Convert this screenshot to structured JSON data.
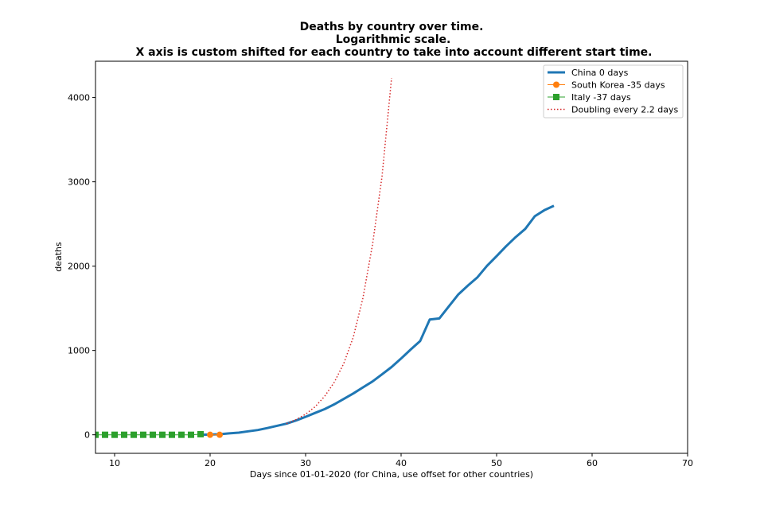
{
  "chart_data": {
    "type": "line",
    "title_lines": [
      "Deaths by country over time.",
      "Logarithmic scale.",
      "X axis is custom shifted for each country to take into account different start time."
    ],
    "xlabel": "Days since 01-01-2020 (for China, use offset for other countries)",
    "ylabel": "deaths",
    "xlim": [
      8,
      70
    ],
    "ylim": [
      -220,
      4430
    ],
    "xticks": [
      10,
      20,
      30,
      40,
      50,
      60,
      70
    ],
    "yticks": [
      0,
      1000,
      2000,
      3000,
      4000
    ],
    "grid": false,
    "legend_position": "top-right",
    "series": [
      {
        "name": "China 0 days",
        "color": "#1f77b4",
        "style": "line",
        "x": [
          19,
          20,
          21,
          22,
          23,
          24,
          25,
          26,
          27,
          28,
          29,
          30,
          31,
          32,
          33,
          34,
          35,
          36,
          37,
          38,
          39,
          40,
          41,
          42,
          43,
          44,
          45,
          46,
          47,
          48,
          49,
          50,
          51,
          52,
          53,
          54,
          55,
          56
        ],
        "y": [
          0,
          3,
          6,
          17,
          25,
          41,
          56,
          80,
          106,
          132,
          170,
          213,
          259,
          304,
          361,
          425,
          490,
          562,
          632,
          717,
          803,
          904,
          1011,
          1113,
          1367,
          1380,
          1523,
          1665,
          1770,
          1868,
          2004,
          2118,
          2236,
          2345,
          2442,
          2592,
          2663,
          2715
        ]
      },
      {
        "name": "South Korea -35 days",
        "color": "#ff7f0e",
        "style": "circle",
        "x": [
          20,
          21
        ],
        "y": [
          0,
          0
        ]
      },
      {
        "name": "Italy -37 days",
        "color": "#2ca02c",
        "style": "square",
        "x": [
          8,
          9,
          10,
          11,
          12,
          13,
          14,
          15,
          16,
          17,
          18,
          19
        ],
        "y": [
          0,
          0,
          0,
          0,
          0,
          0,
          0,
          0,
          0,
          0,
          0,
          7
        ]
      },
      {
        "name": "Doubling every 2.2 days",
        "color": "#d62728",
        "style": "dotted",
        "x": [
          28,
          29,
          30,
          31,
          32,
          33,
          34,
          35,
          36,
          37,
          38,
          39
        ],
        "y": [
          132,
          180,
          244,
          333,
          457,
          622,
          847,
          1160,
          1620,
          2250,
          3060,
          4230
        ]
      }
    ]
  }
}
